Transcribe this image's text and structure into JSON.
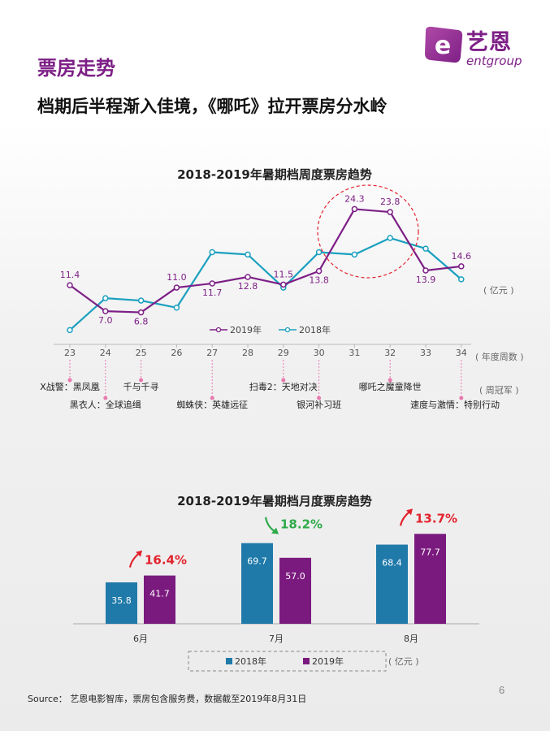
{
  "header": {
    "section_title": "票房走势",
    "subtitle": "档期后半程渐入佳境，《哪吒》拉开票房分水岭"
  },
  "logo": {
    "cn": "艺恩",
    "en": "entgroup"
  },
  "colors": {
    "purple": "#7d1f86",
    "teal": "#1aa0bf",
    "bar_blue": "#1f7aaa",
    "bar_purple": "#7a1a7e",
    "up_red": "#e2232e",
    "down_green": "#2eaa4a"
  },
  "chart_data": [
    {
      "type": "line",
      "title": "2018-2019年暑期档周度票房趋势",
      "x": [
        "23",
        "24",
        "25",
        "26",
        "27",
        "28",
        "29",
        "30",
        "31",
        "32",
        "33",
        "34"
      ],
      "xlabel": "( 年度周数 )",
      "ylabel": "( 亿元 )",
      "ylim": [
        0,
        30
      ],
      "series": [
        {
          "name": "2019年",
          "values": [
            11.4,
            7.0,
            6.8,
            11.0,
            11.7,
            12.8,
            11.5,
            13.8,
            24.3,
            23.8,
            13.9,
            14.6
          ],
          "labels": [
            "11.4",
            "7.0",
            "6.8",
            "11.0",
            "11.7",
            "12.8",
            "11.5",
            "13.8",
            "24.3",
            "23.8",
            "13.9",
            "14.6"
          ]
        },
        {
          "name": "2018年",
          "values": [
            3.8,
            9.2,
            8.8,
            7.6,
            17.0,
            16.6,
            11.0,
            17.0,
            16.6,
            19.4,
            17.6,
            12.4
          ]
        }
      ],
      "highlight": "dashed red ellipse around weeks 31-32",
      "champions_label": "( 周冠军 )",
      "champions": [
        {
          "week": "23",
          "film": "X战警：黑凤凰"
        },
        {
          "week": "24",
          "film": "黑衣人：全球追缉"
        },
        {
          "week": "25",
          "film": "千与千寻"
        },
        {
          "week": "27",
          "film": "蜘蛛侠：英雄远征"
        },
        {
          "week": "29",
          "film": "扫毒2：天地对决"
        },
        {
          "week": "30",
          "film": "银河补习班"
        },
        {
          "week": "32",
          "film": "哪吒之魔童降世"
        },
        {
          "week": "34",
          "film": "速度与激情：特别行动"
        }
      ]
    },
    {
      "type": "bar",
      "title": "2018-2019年暑期档月度票房趋势",
      "categories": [
        "6月",
        "7月",
        "8月"
      ],
      "series": [
        {
          "name": "2018年",
          "values": [
            35.8,
            69.7,
            68.4
          ]
        },
        {
          "name": "2019年",
          "values": [
            41.7,
            57.0,
            77.7
          ]
        }
      ],
      "unit": "( 亿元 )",
      "ylim": [
        0,
        80
      ],
      "changes": [
        {
          "text": "16.4%",
          "dir": "up"
        },
        {
          "text": "18.2%",
          "dir": "down"
        },
        {
          "text": "13.7%",
          "dir": "up"
        }
      ]
    }
  ],
  "footer": {
    "source": "Source：  艺恩电影智库，票房包含服务费，数据截至2019年8月31日",
    "page": "6"
  }
}
